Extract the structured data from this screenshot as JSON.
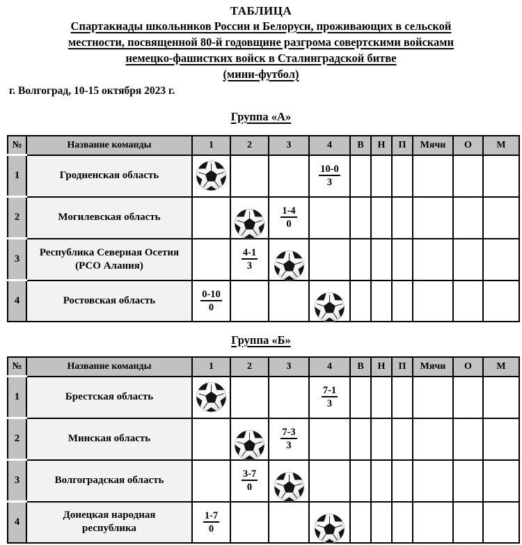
{
  "document": {
    "title": "ТАБЛИЦА",
    "subtitle_lines": [
      "Спартакиады школьников России и Белоруси, проживающих в сельской",
      "местности, посвященной 80-й годовщине разгрома совертскими войсками",
      "немецко-фашистких войск в Сталинградской битве",
      "(мини-футбол)"
    ],
    "event_location_date": "г. Волгоград, 10-15 октября 2023 г."
  },
  "table_headers": [
    "№",
    "Название команды",
    "1",
    "2",
    "3",
    "4",
    "В",
    "Н",
    "П",
    "Мячи",
    "О",
    "М"
  ],
  "groups": [
    {
      "title": "Группа «А»",
      "rows": [
        {
          "num": "1",
          "name_lines": [
            "Гродненская область"
          ],
          "match_cells": [
            {
              "ball": true
            },
            null,
            null,
            {
              "score": "10-0",
              "points": "3"
            }
          ]
        },
        {
          "num": "2",
          "name_lines": [
            "Могилевская область"
          ],
          "match_cells": [
            null,
            {
              "ball": true
            },
            {
              "score": "1-4",
              "points": "0"
            },
            null
          ]
        },
        {
          "num": "3",
          "name_lines": [
            "Республика Северная Осетия",
            "(РСО Алания)"
          ],
          "match_cells": [
            null,
            {
              "score": "4-1",
              "points": "3"
            },
            {
              "ball": true
            },
            null
          ]
        },
        {
          "num": "4",
          "name_lines": [
            "Ростовская область"
          ],
          "match_cells": [
            {
              "score": "0-10",
              "points": "0"
            },
            null,
            null,
            {
              "ball": true
            }
          ]
        }
      ]
    },
    {
      "title": "Группа «Б»",
      "rows": [
        {
          "num": "1",
          "name_lines": [
            "Брестская область"
          ],
          "match_cells": [
            {
              "ball": true
            },
            null,
            null,
            {
              "score": "7-1",
              "points": "3"
            }
          ]
        },
        {
          "num": "2",
          "name_lines": [
            "Минская область"
          ],
          "match_cells": [
            null,
            {
              "ball": true
            },
            {
              "score": "7-3",
              "points": "3"
            },
            null
          ]
        },
        {
          "num": "3",
          "name_lines": [
            "Волгоградская область"
          ],
          "match_cells": [
            null,
            {
              "score": "3-7",
              "points": "0"
            },
            {
              "ball": true
            },
            null
          ]
        },
        {
          "num": "4",
          "name_lines": [
            "Донецкая народная",
            "республика"
          ],
          "match_cells": [
            {
              "score": "1-7",
              "points": "0"
            },
            null,
            null,
            {
              "ball": true
            }
          ]
        }
      ]
    }
  ],
  "icons": {
    "diagonal_cell": "soccer-ball-icon"
  },
  "colors": {
    "header_fill": "#c1c1c1",
    "row_number_fill": "#c1c1c1",
    "team_name_fill": "#f2f2f2",
    "border": "#000000",
    "page_bg": "#ffffff",
    "text": "#000000"
  }
}
